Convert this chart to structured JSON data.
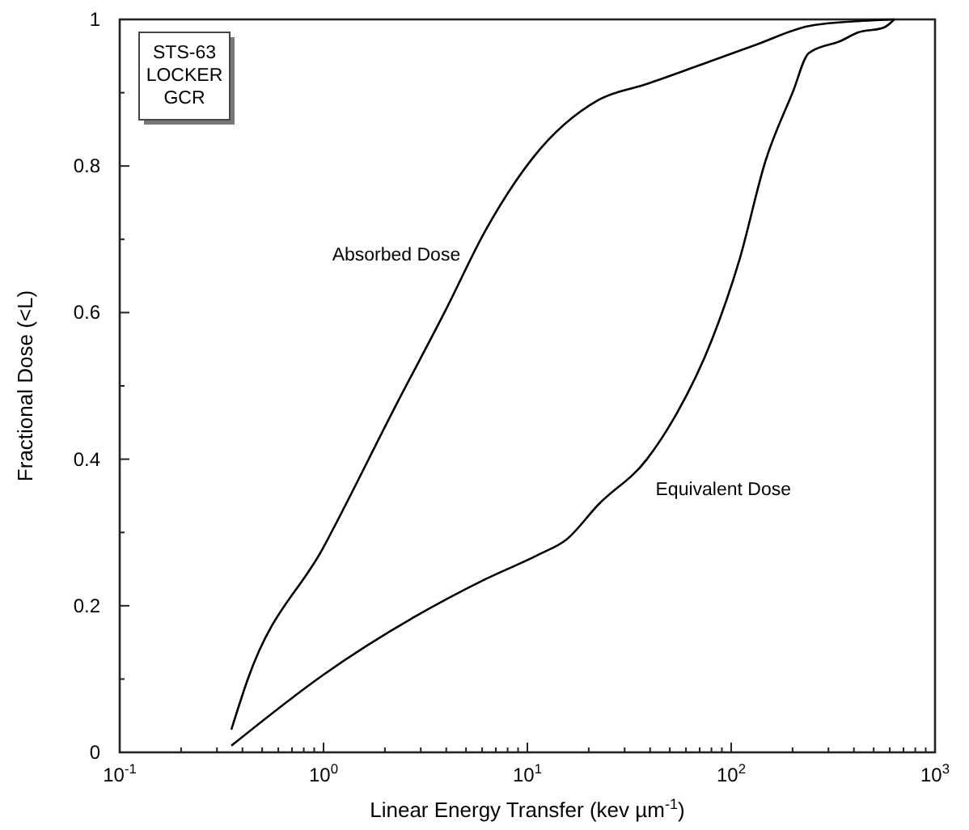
{
  "chart_data": {
    "type": "line",
    "xlabel": "Linear Energy Transfer (kev µm$^{-1}$)",
    "ylabel": "Fractional Dose (<L)",
    "log": "x",
    "xlim": [
      0.1,
      1000
    ],
    "ylim": [
      0,
      1
    ],
    "xticks": [
      {
        "value": 0.1,
        "label": "10$^{-1}$"
      },
      {
        "value": 0.2,
        "label": null
      },
      {
        "value": 0.3,
        "label": null
      },
      {
        "value": 0.4,
        "label": null
      },
      {
        "value": 0.5,
        "label": null
      },
      {
        "value": 0.6,
        "label": null
      },
      {
        "value": 0.7,
        "label": null
      },
      {
        "value": 0.8,
        "label": null
      },
      {
        "value": 0.9,
        "label": null
      },
      {
        "value": 1,
        "label": "10$^{0}$"
      },
      {
        "value": 2,
        "label": null
      },
      {
        "value": 3,
        "label": null
      },
      {
        "value": 4,
        "label": null
      },
      {
        "value": 5,
        "label": null
      },
      {
        "value": 6,
        "label": null
      },
      {
        "value": 7,
        "label": null
      },
      {
        "value": 8,
        "label": null
      },
      {
        "value": 9,
        "label": null
      },
      {
        "value": 10,
        "label": "10$^{1}$"
      },
      {
        "value": 20,
        "label": null
      },
      {
        "value": 30,
        "label": null
      },
      {
        "value": 40,
        "label": null
      },
      {
        "value": 50,
        "label": null
      },
      {
        "value": 60,
        "label": null
      },
      {
        "value": 70,
        "label": null
      },
      {
        "value": 80,
        "label": null
      },
      {
        "value": 90,
        "label": null
      },
      {
        "value": 100,
        "label": "10$^{2}$"
      },
      {
        "value": 200,
        "label": null
      },
      {
        "value": 300,
        "label": null
      },
      {
        "value": 400,
        "label": null
      },
      {
        "value": 500,
        "label": null
      },
      {
        "value": 600,
        "label": null
      },
      {
        "value": 700,
        "label": null
      },
      {
        "value": 800,
        "label": null
      },
      {
        "value": 900,
        "label": null
      },
      {
        "value": 1000,
        "label": "10$^{3}$"
      }
    ],
    "yticks": [
      0,
      {
        "value": 0.1,
        "label": null
      },
      0.2,
      {
        "value": 0.3,
        "label": null
      },
      0.4,
      {
        "value": 0.5,
        "label": null
      },
      0.6,
      {
        "value": 0.7,
        "label": null
      },
      0.8,
      {
        "value": 0.9,
        "label": null
      },
      1
    ],
    "grid": false,
    "marker": "none",
    "line_style": "solid",
    "series": [
      {
        "name": "Absorbed Dose",
        "color": "#000000",
        "x": [
          0.353,
          0.424,
          1.0,
          2.28,
          4.0,
          6.2,
          10.7,
          22.3,
          38.6,
          70.6,
          131,
          240,
          440,
          631
        ],
        "values": [
          0.031,
          0.099,
          0.28,
          0.475,
          0.605,
          0.711,
          0.812,
          0.89,
          0.912,
          0.938,
          0.965,
          0.991,
          0.998,
          1.0
        ]
      },
      {
        "name": "Equivalent Dose",
        "color": "#000000",
        "x": [
          0.353,
          1.0,
          6.2,
          11.4,
          15.5,
          22.3,
          38.6,
          52.7,
          80.4,
          110,
          147,
          200,
          240,
          347,
          417,
          562,
          631
        ],
        "values": [
          0.009,
          0.106,
          0.236,
          0.27,
          0.29,
          0.338,
          0.4,
          0.457,
          0.563,
          0.673,
          0.806,
          0.9,
          0.954,
          0.971,
          0.982,
          0.989,
          1.0
        ]
      }
    ],
    "annotations": [
      "STS-63\nLOCKER\nGCR"
    ]
  }
}
